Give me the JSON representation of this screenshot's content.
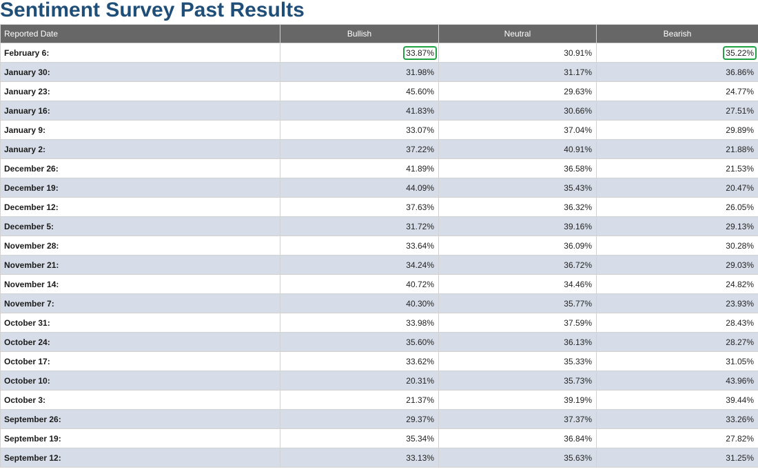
{
  "page": {
    "title": "Sentiment Survey Past Results"
  },
  "table": {
    "headers": {
      "date": "Reported Date",
      "bullish": "Bullish",
      "neutral": "Neutral",
      "bearish": "Bearish"
    },
    "highlight_color": "#22a046",
    "header_bg": "#676767",
    "alt_row_bg": "#d7dde8",
    "rows": [
      {
        "date": "February 6:",
        "bullish": "33.87%",
        "neutral": "30.91%",
        "bearish": "35.22%",
        "hl_bullish": true,
        "hl_bearish": true
      },
      {
        "date": "January 30:",
        "bullish": "31.98%",
        "neutral": "31.17%",
        "bearish": "36.86%"
      },
      {
        "date": "January 23:",
        "bullish": "45.60%",
        "neutral": "29.63%",
        "bearish": "24.77%"
      },
      {
        "date": "January 16:",
        "bullish": "41.83%",
        "neutral": "30.66%",
        "bearish": "27.51%"
      },
      {
        "date": "January 9:",
        "bullish": "33.07%",
        "neutral": "37.04%",
        "bearish": "29.89%"
      },
      {
        "date": "January 2:",
        "bullish": "37.22%",
        "neutral": "40.91%",
        "bearish": "21.88%"
      },
      {
        "date": "December 26:",
        "bullish": "41.89%",
        "neutral": "36.58%",
        "bearish": "21.53%"
      },
      {
        "date": "December 19:",
        "bullish": "44.09%",
        "neutral": "35.43%",
        "bearish": "20.47%"
      },
      {
        "date": "December 12:",
        "bullish": "37.63%",
        "neutral": "36.32%",
        "bearish": "26.05%"
      },
      {
        "date": "December 5:",
        "bullish": "31.72%",
        "neutral": "39.16%",
        "bearish": "29.13%"
      },
      {
        "date": "November 28:",
        "bullish": "33.64%",
        "neutral": "36.09%",
        "bearish": "30.28%"
      },
      {
        "date": "November 21:",
        "bullish": "34.24%",
        "neutral": "36.72%",
        "bearish": "29.03%"
      },
      {
        "date": "November 14:",
        "bullish": "40.72%",
        "neutral": "34.46%",
        "bearish": "24.82%"
      },
      {
        "date": "November 7:",
        "bullish": "40.30%",
        "neutral": "35.77%",
        "bearish": "23.93%"
      },
      {
        "date": "October 31:",
        "bullish": "33.98%",
        "neutral": "37.59%",
        "bearish": "28.43%"
      },
      {
        "date": "October 24:",
        "bullish": "35.60%",
        "neutral": "36.13%",
        "bearish": "28.27%"
      },
      {
        "date": "October 17:",
        "bullish": "33.62%",
        "neutral": "35.33%",
        "bearish": "31.05%"
      },
      {
        "date": "October 10:",
        "bullish": "20.31%",
        "neutral": "35.73%",
        "bearish": "43.96%"
      },
      {
        "date": "October 3:",
        "bullish": "21.37%",
        "neutral": "39.19%",
        "bearish": "39.44%"
      },
      {
        "date": "September 26:",
        "bullish": "29.37%",
        "neutral": "37.37%",
        "bearish": "33.26%"
      },
      {
        "date": "September 19:",
        "bullish": "35.34%",
        "neutral": "36.84%",
        "bearish": "27.82%"
      },
      {
        "date": "September 12:",
        "bullish": "33.13%",
        "neutral": "35.63%",
        "bearish": "31.25%"
      }
    ]
  }
}
